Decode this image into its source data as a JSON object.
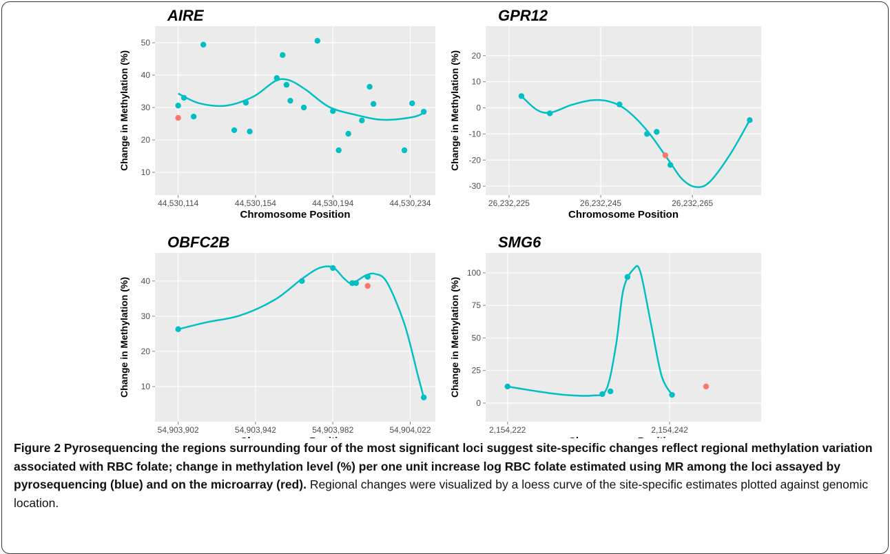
{
  "chart_data": [
    {
      "type": "scatter",
      "title": "AIRE",
      "xlabel": "Chromosome Position",
      "ylabel": "Change in Methylation (%)",
      "xlim": [
        44530102,
        44530247
      ],
      "ylim": [
        3,
        55.1
      ],
      "xticks": [
        {
          "value": 44530114,
          "label": "44,530,114"
        },
        {
          "value": 44530154,
          "label": "44,530,154"
        },
        {
          "value": 44530194,
          "label": "44,530,194"
        },
        {
          "value": 44530234,
          "label": "44,530,234"
        }
      ],
      "yticks": [
        10,
        20,
        30,
        40,
        50
      ],
      "series": [
        {
          "kind": "line",
          "color": "#00bfc4",
          "x": [
            44530114,
            44530125,
            44530139,
            44530153,
            44530164,
            44530171,
            44530180,
            44530192,
            44530206,
            44530220,
            44530235,
            44530241
          ],
          "values": [
            34.3,
            31.3,
            30.6,
            33.4,
            38.1,
            38.5,
            35.5,
            30.2,
            27.7,
            26.2,
            27.0,
            28.3
          ]
        },
        {
          "kind": "points",
          "color": "#00bfc4",
          "x": [
            44530114,
            44530117,
            44530122,
            44530127,
            44530143,
            44530149,
            44530151,
            44530165,
            44530168,
            44530170,
            44530172,
            44530179,
            44530186,
            44530194,
            44530197,
            44530202,
            44530209,
            44530213,
            44530215,
            44530231,
            44530235,
            44530241
          ],
          "values": [
            30.6,
            33.0,
            27.2,
            49.4,
            23.0,
            31.5,
            22.6,
            39.1,
            46.2,
            37.0,
            32.1,
            30.0,
            50.6,
            28.9,
            16.8,
            21.9,
            26.0,
            36.4,
            31.1,
            16.8,
            31.3,
            28.7
          ]
        },
        {
          "kind": "points",
          "color": "#f8766d",
          "x": [
            44530114
          ],
          "values": [
            26.8
          ]
        }
      ]
    },
    {
      "type": "scatter",
      "title": "GPR12",
      "xlabel": "Chromosome Position",
      "ylabel": "Change in Methylation (%)",
      "xlim": [
        26232219.9,
        26232280
      ],
      "ylim": [
        -33.4,
        31.3
      ],
      "xticks": [
        {
          "value": 26232225,
          "label": "26,232,225"
        },
        {
          "value": 26232245,
          "label": "26,232,245"
        },
        {
          "value": 26232265,
          "label": "26,232,265"
        }
      ],
      "yticks": [
        -30,
        -20,
        -10,
        0,
        10,
        20
      ],
      "series": [
        {
          "kind": "line",
          "color": "#00bfc4",
          "x": [
            26232227.7,
            26232231.1,
            26232234.1,
            26232238.6,
            26232243.1,
            26232246.9,
            26232250.6,
            26232255.1,
            26232259.7,
            26232262.7,
            26232265.6,
            26232268.7,
            26232273.2,
            26232277.5
          ],
          "values": [
            4.5,
            -0.8,
            -1.8,
            1.1,
            2.9,
            2.4,
            -0.8,
            -8.7,
            -19.8,
            -27.2,
            -30.3,
            -28.5,
            -17.9,
            -4.7
          ]
        },
        {
          "kind": "points",
          "color": "#00bfc4",
          "x": [
            26232227.7,
            26232233.9,
            26232249.1,
            26232255.1,
            26232257.2,
            26232260.2,
            26232277.5
          ],
          "values": [
            4.5,
            -2.1,
            1.3,
            -10.0,
            -9.2,
            -21.9,
            -4.7
          ]
        },
        {
          "kind": "points",
          "color": "#f8766d",
          "x": [
            26232259.1
          ],
          "values": [
            -18.2
          ]
        }
      ]
    },
    {
      "type": "scatter",
      "title": "OBFC2B",
      "xlabel": "Chromosome Position",
      "ylabel": "Change in Methylation (%)",
      "xlim": [
        54903890,
        54904035
      ],
      "ylim": [
        0,
        48
      ],
      "xticks": [
        {
          "value": 54903902,
          "label": "54,903,902"
        },
        {
          "value": 54903942,
          "label": "54,903,942"
        },
        {
          "value": 54903982,
          "label": "54,903,982"
        },
        {
          "value": 54904022,
          "label": "54,904,022"
        }
      ],
      "yticks": [
        10,
        20,
        30,
        40
      ],
      "series": [
        {
          "kind": "line",
          "color": "#00bfc4",
          "x": [
            54903902,
            54903917,
            54903934,
            54903952,
            54903966,
            54903975,
            54903982,
            54903988,
            54903992,
            54903999,
            54904004,
            54904010,
            54904019,
            54904026,
            54904029
          ],
          "values": [
            26.3,
            28.3,
            30.2,
            34.7,
            40.6,
            43.7,
            43.9,
            40.6,
            39.4,
            41.6,
            42.0,
            39.6,
            27.8,
            13.1,
            6.9
          ]
        },
        {
          "kind": "points",
          "color": "#00bfc4",
          "x": [
            54903902,
            54903966,
            54903982,
            54903992,
            54903994,
            54904000,
            54904029
          ],
          "values": [
            26.3,
            40.0,
            43.7,
            39.4,
            39.4,
            41.2,
            6.9
          ]
        },
        {
          "kind": "points",
          "color": "#f8766d",
          "x": [
            54904000
          ],
          "values": [
            38.6
          ]
        }
      ]
    },
    {
      "type": "scatter",
      "title": "SMG6",
      "xlabel": "Chromosome Position",
      "ylabel": "Change in Methylation (%)",
      "xlim": [
        2154219.3,
        2154253.3
      ],
      "ylim": [
        -14.3,
        115.3
      ],
      "xticks": [
        {
          "value": 2154222,
          "label": "2,154,222"
        },
        {
          "value": 2154242,
          "label": "2,154,242"
        }
      ],
      "yticks": [
        0,
        25,
        50,
        75,
        100
      ],
      "series": [
        {
          "kind": "line",
          "color": "#00bfc4",
          "x": [
            2154222,
            2154225.7,
            2154229.1,
            2154232.5,
            2154234.2,
            2154235.4,
            2154236.3,
            2154237.6,
            2154238.4,
            2154239.7,
            2154241,
            2154242.3
          ],
          "values": [
            12.7,
            9.0,
            6.3,
            5.8,
            10.6,
            45,
            87.3,
            103.2,
            100.5,
            60.8,
            21.2,
            6.3
          ]
        },
        {
          "kind": "points",
          "color": "#00bfc4",
          "x": [
            2154222,
            2154233.7,
            2154234.7,
            2154236.8,
            2154242.3
          ],
          "values": [
            12.7,
            6.9,
            9.0,
            96.8,
            6.3
          ]
        },
        {
          "kind": "points",
          "color": "#f8766d",
          "x": [
            2154246.5
          ],
          "values": [
            12.7
          ]
        }
      ]
    }
  ],
  "caption": {
    "bold": "Figure 2 Pyrosequencing the regions surrounding four of the most significant loci suggest site-specific changes reflect regional methylation variation associated with RBC folate; change in methylation level (%) per one unit increase log RBC folate estimated using MR among the loci assayed by pyrosequencing (blue) and on the microarray (red).",
    "text": "Regional changes were visualized by a loess curve of the site-specific estimates plotted against genomic location."
  }
}
